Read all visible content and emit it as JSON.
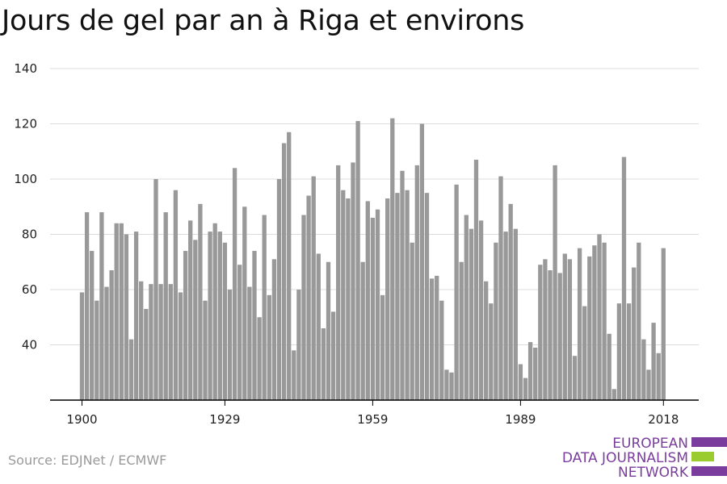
{
  "title": "Jours de gel par an à Riga et environs",
  "source": "Source: EDJNet / ECMWF",
  "logo": {
    "line1": "EUROPEAN",
    "line2": "DATA JOURNALISM",
    "line3": "NETWORK",
    "colors": {
      "text": "#7a3d9e",
      "purple": "#7a3d9e",
      "green": "#9bcc2f"
    }
  },
  "colors": {
    "bar": "#999999",
    "grid": "#dcdcdc",
    "axis": "#000000"
  },
  "chart_data": {
    "type": "bar",
    "title": "Jours de gel par an à Riga et environs",
    "xlabel": "",
    "ylabel": "",
    "ylim": [
      20,
      140
    ],
    "yticks": [
      40,
      60,
      80,
      100,
      120,
      140
    ],
    "xticks": [
      1900,
      1929,
      1959,
      1989,
      2018
    ],
    "grid": true,
    "legend": "none",
    "x_start": 1900,
    "x_end": 2018,
    "categories": [
      1900,
      1901,
      1902,
      1903,
      1904,
      1905,
      1906,
      1907,
      1908,
      1909,
      1910,
      1911,
      1912,
      1913,
      1914,
      1915,
      1916,
      1917,
      1918,
      1919,
      1920,
      1921,
      1922,
      1923,
      1924,
      1925,
      1926,
      1927,
      1928,
      1929,
      1930,
      1931,
      1932,
      1933,
      1934,
      1935,
      1936,
      1937,
      1938,
      1939,
      1940,
      1941,
      1942,
      1943,
      1944,
      1945,
      1946,
      1947,
      1948,
      1949,
      1950,
      1951,
      1952,
      1953,
      1954,
      1955,
      1956,
      1957,
      1958,
      1959,
      1960,
      1961,
      1962,
      1963,
      1964,
      1965,
      1966,
      1967,
      1968,
      1969,
      1970,
      1971,
      1972,
      1973,
      1974,
      1975,
      1976,
      1977,
      1978,
      1979,
      1980,
      1981,
      1982,
      1983,
      1984,
      1985,
      1986,
      1987,
      1988,
      1989,
      1990,
      1991,
      1992,
      1993,
      1994,
      1995,
      1996,
      1997,
      1998,
      1999,
      2000,
      2001,
      2002,
      2003,
      2004,
      2005,
      2006,
      2007,
      2008,
      2009,
      2010,
      2011,
      2012,
      2013,
      2014,
      2015,
      2016,
      2017,
      2018
    ],
    "values": [
      59,
      88,
      74,
      56,
      88,
      61,
      67,
      84,
      84,
      80,
      42,
      81,
      63,
      53,
      62,
      100,
      62,
      88,
      62,
      96,
      59,
      74,
      85,
      78,
      91,
      56,
      81,
      84,
      81,
      77,
      60,
      104,
      69,
      90,
      61,
      74,
      50,
      87,
      58,
      71,
      100,
      113,
      117,
      38,
      60,
      87,
      94,
      101,
      73,
      46,
      70,
      52,
      105,
      96,
      93,
      106,
      121,
      70,
      92,
      86,
      89,
      58,
      93,
      122,
      95,
      103,
      96,
      77,
      105,
      120,
      95,
      64,
      65,
      56,
      31,
      30,
      98,
      70,
      87,
      82,
      107,
      85,
      63,
      55,
      77,
      101,
      81,
      91,
      82,
      33,
      28,
      41,
      39,
      69,
      71,
      67,
      105,
      66,
      73,
      71,
      36,
      75,
      54,
      72,
      76,
      80,
      77,
      44,
      24,
      55,
      108,
      55,
      68,
      77,
      42,
      31,
      48,
      37,
      75
    ]
  }
}
